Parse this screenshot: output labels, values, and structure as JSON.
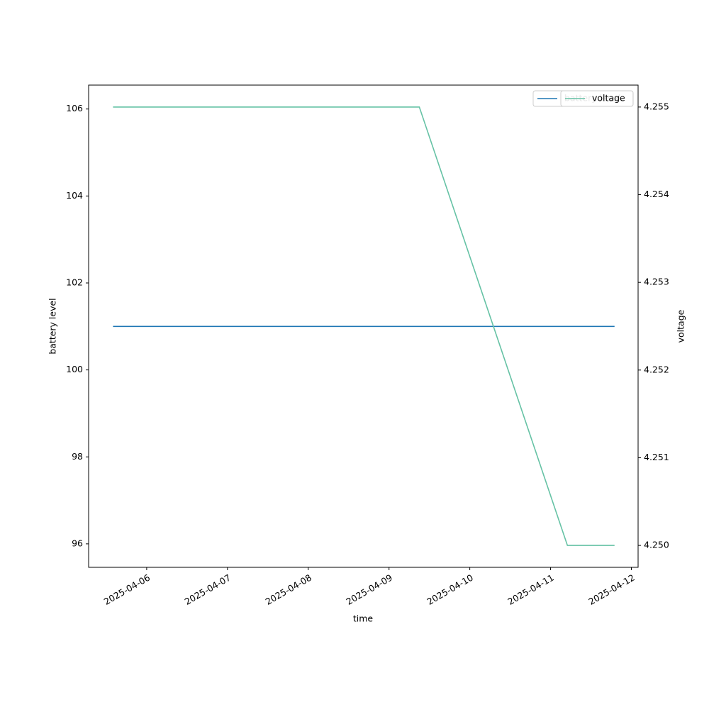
{
  "chart_data": {
    "type": "line",
    "xlabel": "time",
    "ylabel": "battery level",
    "y2label": "voltage",
    "x": [
      "2025-04-05T14:00",
      "2025-04-09T09:00",
      "2025-04-11T05:00",
      "2025-04-11T19:00"
    ],
    "series": [
      {
        "name": "battery level",
        "color": "#1f77b4",
        "values": [
          101,
          101,
          101,
          101
        ]
      },
      {
        "name": "voltage",
        "color": "#66c2a5",
        "axis": "y2",
        "values": [
          4.255,
          4.255,
          4.25,
          4.25
        ]
      }
    ],
    "xlim": [
      "2025-04-05T06:45",
      "2025-04-12T02:00"
    ],
    "xticks": [
      "2025-04-06",
      "2025-04-07",
      "2025-04-08",
      "2025-04-09",
      "2025-04-10",
      "2025-04-11",
      "2025-04-12"
    ],
    "ylim": [
      95.46,
      106.55
    ],
    "yticks": [
      96,
      98,
      100,
      102,
      104,
      106
    ],
    "y2lim": [
      4.24975,
      4.25525
    ],
    "y2ticks": [
      {
        "value": 4.25,
        "label": "4.250"
      },
      4.251,
      4.252,
      4.253,
      4.254,
      4.255
    ],
    "legend": "upper right"
  }
}
